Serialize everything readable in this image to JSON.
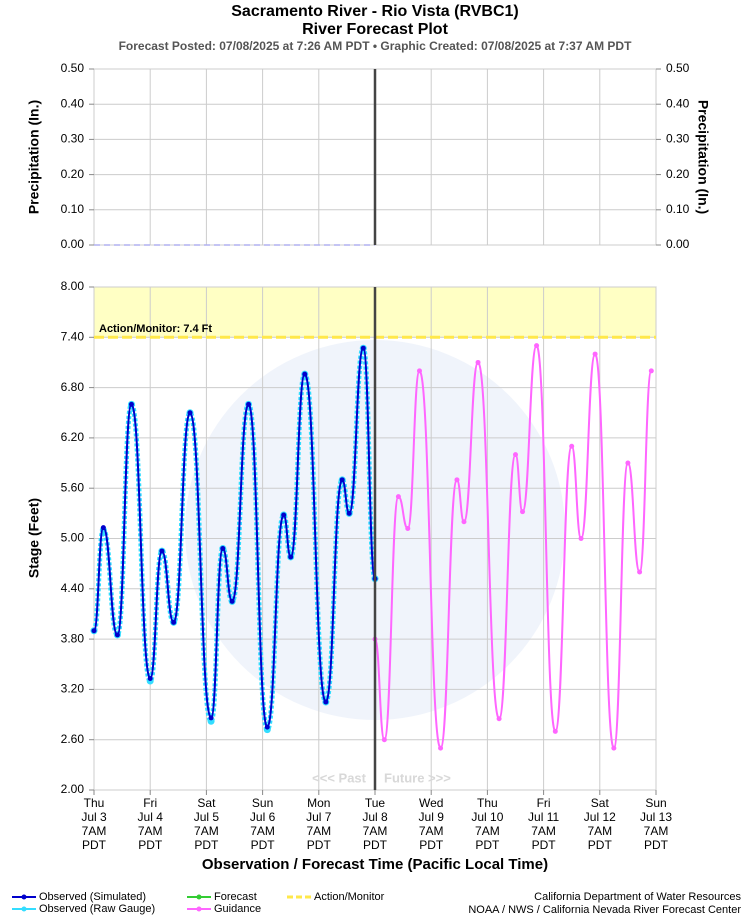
{
  "chart_data": [
    {
      "type": "line",
      "title": "Sacramento River - Rio Vista (RVBC1)",
      "subtitle": "River Forecast Plot",
      "caption": "Forecast Posted: 07/08/2025 at 7:26 AM PDT  •  Graphic Created: 07/08/2025 at 7:37 AM PDT",
      "ylabel": "Precipitation (In.)",
      "y2label": "Precipitation (In.)",
      "xlim": [
        "2025-07-03T07:00",
        "2025-07-13T07:00"
      ],
      "ylim": [
        0,
        0.5
      ],
      "yticks": [
        {
          "value": 0,
          "label": "0.00"
        },
        {
          "value": 0.1,
          "label": "0.10"
        },
        {
          "value": 0.2,
          "label": "0.20"
        },
        {
          "value": 0.3,
          "label": "0.30"
        },
        {
          "value": 0.4,
          "label": "0.40"
        },
        {
          "value": 0.5,
          "label": "0.50"
        }
      ],
      "y2lim": [
        0,
        0.5
      ],
      "y2ticks": [
        {
          "value": 0,
          "label": "0.00"
        },
        {
          "value": 0.1,
          "label": "0.10"
        },
        {
          "value": 0.2,
          "label": "0.20"
        },
        {
          "value": 0.3,
          "label": "0.30"
        },
        {
          "value": 0.4,
          "label": "0.40"
        },
        {
          "value": 0.5,
          "label": "0.50"
        }
      ],
      "now": "2025-07-08T07:00",
      "grid": true,
      "series": [
        {
          "color": "#b0b0f0",
          "x": [
            "2025-07-03T07:00",
            "2025-07-08T07:00"
          ],
          "values": [
            0,
            0
          ]
        }
      ]
    },
    {
      "type": "line",
      "ylabel": "Stage (Feet)",
      "xlabel": "Observation / Forecast Time (Pacific Local Time)",
      "xlim": [
        "2025-07-03T07:00",
        "2025-07-13T07:00"
      ],
      "xticks": [
        {
          "value": "2025-07-03T07:00",
          "label": [
            "Thu",
            "Jul 3",
            "7AM",
            "PDT"
          ]
        },
        {
          "value": "2025-07-04T07:00",
          "label": [
            "Fri",
            "Jul 4",
            "7AM",
            "PDT"
          ]
        },
        {
          "value": "2025-07-05T07:00",
          "label": [
            "Sat",
            "Jul 5",
            "7AM",
            "PDT"
          ]
        },
        {
          "value": "2025-07-06T07:00",
          "label": [
            "Sun",
            "Jul 6",
            "7AM",
            "PDT"
          ]
        },
        {
          "value": "2025-07-07T07:00",
          "label": [
            "Mon",
            "Jul 7",
            "7AM",
            "PDT"
          ]
        },
        {
          "value": "2025-07-08T07:00",
          "label": [
            "Tue",
            "Jul 8",
            "7AM",
            "PDT"
          ]
        },
        {
          "value": "2025-07-09T07:00",
          "label": [
            "Wed",
            "Jul 9",
            "7AM",
            "PDT"
          ]
        },
        {
          "value": "2025-07-10T07:00",
          "label": [
            "Thu",
            "Jul 10",
            "7AM",
            "PDT"
          ]
        },
        {
          "value": "2025-07-11T07:00",
          "label": [
            "Fri",
            "Jul 11",
            "7AM",
            "PDT"
          ]
        },
        {
          "value": "2025-07-12T07:00",
          "label": [
            "Sat",
            "Jul 12",
            "7AM",
            "PDT"
          ]
        },
        {
          "value": "2025-07-13T07:00",
          "label": [
            "Sun",
            "Jul 13",
            "7AM",
            "PDT"
          ]
        }
      ],
      "ylim": [
        2,
        8
      ],
      "yticks": [
        {
          "value": 2,
          "label": "2.00"
        },
        {
          "value": 2.6,
          "label": "2.60"
        },
        {
          "value": 3.2,
          "label": "3.20"
        },
        {
          "value": 3.8,
          "label": "3.80"
        },
        {
          "value": 4.4,
          "label": "4.40"
        },
        {
          "value": 5,
          "label": "5.00"
        },
        {
          "value": 5.6,
          "label": "5.60"
        },
        {
          "value": 6.2,
          "label": "6.20"
        },
        {
          "value": 6.8,
          "label": "6.80"
        },
        {
          "value": 7.4,
          "label": "7.40"
        },
        {
          "value": 8,
          "label": "8.00"
        }
      ],
      "now": "2025-07-08T07:00",
      "grid": true,
      "annotations": [
        "<<< Past",
        "Future >>>"
      ],
      "thresholds": [
        {
          "name": "Action/Monitor",
          "value": 7.4,
          "label": "Action/Monitor: 7.4 Ft",
          "color": "#ffe84a",
          "fill": "#ffffc4"
        }
      ],
      "series": [
        {
          "name": "Observed (Raw Gauge)",
          "color": "#33ddff",
          "x": [
            "2025-07-03T07:00",
            "2025-07-03T11:00",
            "2025-07-03T17:00",
            "2025-07-03T23:00",
            "2025-07-04T07:00",
            "2025-07-04T12:00",
            "2025-07-04T17:00",
            "2025-07-05T00:00",
            "2025-07-05T09:00",
            "2025-07-05T14:00",
            "2025-07-05T18:00",
            "2025-07-06T01:00",
            "2025-07-06T09:00",
            "2025-07-06T16:00",
            "2025-07-06T19:00",
            "2025-07-07T01:00",
            "2025-07-07T10:00",
            "2025-07-07T17:00",
            "2025-07-07T20:00",
            "2025-07-08T02:00",
            "2025-07-08T07:00"
          ],
          "values": [
            3.9,
            5.1,
            3.85,
            6.6,
            3.3,
            4.85,
            4.0,
            6.5,
            2.82,
            4.88,
            4.25,
            6.6,
            2.72,
            5.28,
            4.78,
            6.96,
            3.05,
            5.7,
            5.3,
            7.27,
            4.52
          ]
        },
        {
          "name": "Observed (Simulated)",
          "color": "#0000cc",
          "x": [
            "2025-07-03T07:00",
            "2025-07-03T11:00",
            "2025-07-03T17:00",
            "2025-07-03T23:00",
            "2025-07-04T07:00",
            "2025-07-04T12:00",
            "2025-07-04T17:00",
            "2025-07-05T00:00",
            "2025-07-05T09:00",
            "2025-07-05T14:00",
            "2025-07-05T18:00",
            "2025-07-06T01:00",
            "2025-07-06T09:00",
            "2025-07-06T16:00",
            "2025-07-06T19:00",
            "2025-07-07T01:00",
            "2025-07-07T10:00",
            "2025-07-07T17:00",
            "2025-07-07T20:00",
            "2025-07-08T02:00",
            "2025-07-08T07:00"
          ],
          "values": [
            3.9,
            5.13,
            3.85,
            6.6,
            3.33,
            4.85,
            4.0,
            6.5,
            2.86,
            4.88,
            4.25,
            6.6,
            2.75,
            5.28,
            4.78,
            6.96,
            3.05,
            5.7,
            5.3,
            7.27,
            4.52
          ]
        },
        {
          "name": "Forecast",
          "color": "#33cc33",
          "x": [],
          "values": []
        },
        {
          "name": "Guidance",
          "color": "#ff66ff",
          "x": [
            "2025-07-08T07:00",
            "2025-07-08T11:00",
            "2025-07-08T17:00",
            "2025-07-08T21:00",
            "2025-07-09T02:00",
            "2025-07-09T11:00",
            "2025-07-09T18:00",
            "2025-07-09T21:00",
            "2025-07-10T03:00",
            "2025-07-10T12:00",
            "2025-07-10T19:00",
            "2025-07-10T22:00",
            "2025-07-11T04:00",
            "2025-07-11T12:00",
            "2025-07-11T19:00",
            "2025-07-11T23:00",
            "2025-07-12T05:00",
            "2025-07-12T13:00",
            "2025-07-12T19:00",
            "2025-07-13T00:00",
            "2025-07-13T05:00"
          ],
          "values": [
            3.8,
            2.6,
            5.5,
            5.12,
            7.0,
            2.5,
            5.7,
            5.2,
            7.1,
            2.85,
            6.0,
            5.32,
            7.3,
            2.7,
            6.1,
            5.0,
            7.2,
            2.5,
            5.9,
            4.6,
            7.0
          ]
        }
      ]
    }
  ],
  "footer": [
    "California Department of Water Resources",
    "NOAA / NWS / California Nevada River Forecast Center"
  ]
}
